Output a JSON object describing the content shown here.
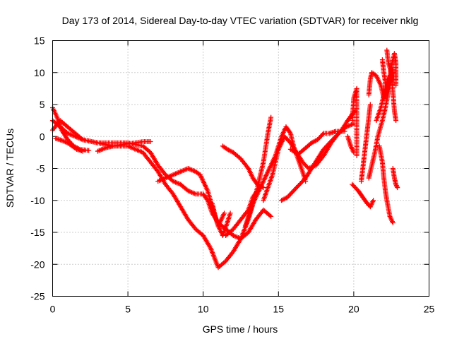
{
  "chart_data": {
    "type": "scatter",
    "title": "Day 173 of 2014, Sidereal Day-to-day VTEC variation (SDTVAR) for receiver nklg",
    "xlabel": "GPS time / hours",
    "ylabel": "SDTVAR / TECUs",
    "xlim": [
      0,
      25
    ],
    "ylim": [
      -25,
      15
    ],
    "xticks": [
      0,
      5,
      10,
      15,
      20,
      25
    ],
    "yticks": [
      -25,
      -20,
      -15,
      -10,
      -5,
      0,
      5,
      10,
      15
    ],
    "xtick_labels": [
      "0",
      "5",
      "10",
      "15",
      "20",
      "25"
    ],
    "ytick_labels": [
      "-25",
      "-20",
      "-15",
      "-10",
      "-5",
      "0",
      "5",
      "10",
      "15"
    ],
    "grid": true,
    "marker": "plus",
    "color": "#ff0000",
    "series": [
      {
        "name": "track-1",
        "points": [
          [
            0.0,
            1.0
          ],
          [
            0.5,
            2.5
          ],
          [
            1.0,
            1.5
          ],
          [
            1.5,
            0.5
          ],
          [
            2.0,
            -0.5
          ],
          [
            3.0,
            -1.0
          ],
          [
            4.0,
            -1.0
          ],
          [
            5.0,
            -1.0
          ],
          [
            6.0,
            -1.5
          ],
          [
            6.5,
            -2.5
          ],
          [
            7.0,
            -4.5
          ],
          [
            7.5,
            -6.0
          ],
          [
            8.0,
            -7.0
          ],
          [
            8.5,
            -7.5
          ],
          [
            9.0,
            -8.5
          ],
          [
            9.5,
            -9.0
          ],
          [
            10.0,
            -9.0
          ],
          [
            10.3,
            -10.0
          ],
          [
            10.6,
            -12.0
          ],
          [
            11.0,
            -13.5
          ],
          [
            11.5,
            -14.5
          ],
          [
            12.0,
            -15.5
          ],
          [
            12.5,
            -16.0
          ],
          [
            13.0,
            -15.0
          ],
          [
            13.5,
            -13.0
          ],
          [
            14.0,
            -11.5
          ],
          [
            14.5,
            -12.5
          ]
        ]
      },
      {
        "name": "track-2",
        "points": [
          [
            0.0,
            2.5
          ],
          [
            0.5,
            1.5
          ],
          [
            1.0,
            0.5
          ],
          [
            1.5,
            0.0
          ],
          [
            2.0,
            -0.5
          ],
          [
            3.0,
            -1.0
          ],
          [
            4.0,
            -1.5
          ],
          [
            5.0,
            -1.5
          ],
          [
            6.0,
            -2.5
          ],
          [
            6.5,
            -4.0
          ],
          [
            7.0,
            -5.5
          ],
          [
            7.5,
            -7.5
          ],
          [
            8.0,
            -9.0
          ],
          [
            8.5,
            -11.0
          ],
          [
            9.0,
            -13.0
          ],
          [
            9.5,
            -14.5
          ],
          [
            10.0,
            -15.5
          ],
          [
            10.5,
            -17.5
          ],
          [
            11.0,
            -20.5
          ],
          [
            11.5,
            -19.5
          ],
          [
            12.0,
            -18.0
          ],
          [
            12.5,
            -16.0
          ],
          [
            13.0,
            -13.0
          ],
          [
            13.5,
            -9.0
          ],
          [
            14.0,
            -4.0
          ],
          [
            14.3,
            0.5
          ],
          [
            14.5,
            3.0
          ]
        ]
      },
      {
        "name": "track-3",
        "points": [
          [
            0.0,
            4.5
          ],
          [
            0.3,
            3.0
          ],
          [
            0.6,
            1.0
          ],
          [
            1.0,
            -0.5
          ],
          [
            1.4,
            -1.5
          ],
          [
            1.8,
            -2.0
          ],
          [
            2.4,
            -2.2
          ]
        ]
      },
      {
        "name": "track-4",
        "points": [
          [
            0.2,
            -0.3
          ],
          [
            0.6,
            -0.6
          ],
          [
            1.0,
            -1.0
          ],
          [
            1.3,
            -1.5
          ],
          [
            1.6,
            -2.0
          ],
          [
            2.0,
            -2.3
          ]
        ]
      },
      {
        "name": "track-5",
        "points": [
          [
            3.0,
            -2.3
          ],
          [
            3.5,
            -1.8
          ],
          [
            4.0,
            -1.5
          ],
          [
            4.8,
            -1.2
          ],
          [
            5.5,
            -1.0
          ],
          [
            6.0,
            -0.8
          ],
          [
            6.5,
            -0.8
          ]
        ]
      },
      {
        "name": "track-6",
        "points": [
          [
            7.0,
            -7.0
          ],
          [
            8.0,
            -6.0
          ],
          [
            8.5,
            -5.5
          ],
          [
            9.0,
            -5.0
          ],
          [
            9.5,
            -5.5
          ],
          [
            9.8,
            -6.0
          ],
          [
            10.0,
            -7.0
          ],
          [
            10.3,
            -8.5
          ],
          [
            10.6,
            -11.0
          ],
          [
            11.0,
            -14.0
          ],
          [
            11.3,
            -15.5
          ],
          [
            11.6,
            -13.5
          ],
          [
            11.8,
            -12.0
          ]
        ]
      },
      {
        "name": "track-7",
        "points": [
          [
            10.6,
            -10.5
          ],
          [
            10.8,
            -12.5
          ],
          [
            11.0,
            -14.0
          ],
          [
            11.2,
            -13.0
          ],
          [
            11.4,
            -12.0
          ]
        ]
      },
      {
        "name": "track-8",
        "points": [
          [
            11.3,
            -1.5
          ],
          [
            11.6,
            -2.0
          ],
          [
            12.0,
            -2.5
          ],
          [
            12.5,
            -3.5
          ],
          [
            13.0,
            -5.0
          ],
          [
            13.3,
            -6.5
          ],
          [
            13.6,
            -7.5
          ],
          [
            14.0,
            -8.0
          ]
        ]
      },
      {
        "name": "track-9",
        "points": [
          [
            11.5,
            -15.5
          ],
          [
            12.0,
            -14.5
          ],
          [
            12.5,
            -13.0
          ],
          [
            13.0,
            -11.5
          ],
          [
            13.3,
            -9.5
          ],
          [
            13.6,
            -8.5
          ]
        ]
      },
      {
        "name": "track-10",
        "points": [
          [
            12.8,
            -14.0
          ],
          [
            13.3,
            -10.5
          ],
          [
            13.8,
            -8.0
          ],
          [
            14.3,
            -5.5
          ],
          [
            14.8,
            -3.0
          ],
          [
            15.2,
            0.0
          ],
          [
            15.5,
            1.5
          ],
          [
            15.8,
            0.5
          ],
          [
            16.0,
            -1.5
          ],
          [
            16.3,
            -3.5
          ],
          [
            16.6,
            -5.5
          ],
          [
            16.8,
            -7.0
          ]
        ]
      },
      {
        "name": "track-11",
        "points": [
          [
            14.0,
            -10.0
          ],
          [
            14.6,
            -6.0
          ],
          [
            15.0,
            -2.0
          ],
          [
            15.4,
            0.0
          ],
          [
            15.8,
            -1.0
          ],
          [
            16.2,
            -2.5
          ],
          [
            16.6,
            -4.0
          ],
          [
            17.0,
            -5.0
          ],
          [
            17.5,
            -4.5
          ],
          [
            18.0,
            -3.0
          ],
          [
            18.5,
            -1.0
          ],
          [
            19.0,
            0.5
          ],
          [
            19.5,
            1.5
          ],
          [
            20.0,
            2.0
          ]
        ]
      },
      {
        "name": "track-12",
        "points": [
          [
            15.2,
            -10.0
          ],
          [
            15.6,
            -9.5
          ],
          [
            16.0,
            -8.5
          ],
          [
            16.4,
            -7.5
          ],
          [
            16.8,
            -6.5
          ],
          [
            17.2,
            -5.0
          ],
          [
            17.6,
            -3.5
          ],
          [
            18.0,
            -2.0
          ],
          [
            18.4,
            -1.0
          ],
          [
            18.8,
            0.0
          ],
          [
            19.2,
            1.0
          ],
          [
            19.6,
            2.5
          ],
          [
            19.9,
            3.5
          ],
          [
            20.1,
            4.0
          ]
        ]
      },
      {
        "name": "track-13",
        "points": [
          [
            15.8,
            -2.0
          ],
          [
            16.3,
            -2.8
          ],
          [
            16.8,
            -1.8
          ],
          [
            17.2,
            -1.0
          ],
          [
            17.6,
            -0.5
          ],
          [
            18.0,
            0.5
          ],
          [
            18.4,
            0.5
          ],
          [
            18.8,
            0.8
          ],
          [
            19.4,
            0.8
          ]
        ]
      },
      {
        "name": "track-14",
        "points": [
          [
            19.6,
            0.0
          ],
          [
            19.8,
            -1.5
          ],
          [
            20.0,
            -2.5
          ]
        ]
      },
      {
        "name": "track-15",
        "points": [
          [
            19.9,
            2.5
          ],
          [
            20.0,
            6.0
          ],
          [
            20.2,
            7.5
          ],
          [
            20.2,
            -3.0
          ]
        ]
      },
      {
        "name": "track-16",
        "points": [
          [
            19.9,
            -7.5
          ],
          [
            20.1,
            -8.0
          ],
          [
            20.3,
            -8.5
          ],
          [
            20.6,
            -9.5
          ],
          [
            20.9,
            -10.5
          ],
          [
            21.1,
            -11.0
          ],
          [
            21.3,
            -10.0
          ]
        ]
      },
      {
        "name": "track-17",
        "points": [
          [
            21.0,
            -6.5
          ],
          [
            21.2,
            -4.5
          ],
          [
            21.4,
            -2.5
          ],
          [
            21.6,
            0.0
          ],
          [
            21.9,
            2.5
          ],
          [
            22.1,
            4.5
          ],
          [
            22.3,
            7.0
          ],
          [
            22.5,
            9.0
          ],
          [
            22.6,
            10.5
          ]
        ]
      },
      {
        "name": "track-18",
        "points": [
          [
            21.0,
            6.5
          ],
          [
            21.1,
            9.0
          ],
          [
            21.2,
            10.0
          ],
          [
            21.5,
            9.5
          ],
          [
            21.8,
            8.0
          ],
          [
            22.0,
            6.0
          ],
          [
            22.2,
            7.5
          ],
          [
            22.4,
            9.5
          ],
          [
            22.6,
            10.0
          ]
        ]
      },
      {
        "name": "track-19",
        "points": [
          [
            21.5,
            2.5
          ],
          [
            21.8,
            4.5
          ],
          [
            22.0,
            6.5
          ],
          [
            22.3,
            8.0
          ],
          [
            22.5,
            11.0
          ],
          [
            22.7,
            13.0
          ],
          [
            22.8,
            11.5
          ],
          [
            22.8,
            8.0
          ]
        ]
      },
      {
        "name": "track-20",
        "points": [
          [
            21.7,
            -1.5
          ],
          [
            21.9,
            -4.0
          ],
          [
            22.0,
            -6.5
          ],
          [
            22.1,
            -8.5
          ],
          [
            22.2,
            -10.0
          ],
          [
            22.4,
            -12.5
          ],
          [
            22.6,
            -13.5
          ]
        ]
      },
      {
        "name": "track-21",
        "points": [
          [
            22.2,
            13.5
          ],
          [
            22.3,
            11.5
          ],
          [
            22.5,
            10.0
          ],
          [
            22.6,
            7.0
          ],
          [
            22.7,
            4.0
          ],
          [
            22.8,
            2.5
          ]
        ]
      },
      {
        "name": "track-22",
        "points": [
          [
            22.6,
            -5.0
          ],
          [
            22.7,
            -6.5
          ],
          [
            22.8,
            -7.5
          ],
          [
            22.9,
            -8.0
          ]
        ]
      },
      {
        "name": "track-23",
        "points": [
          [
            21.9,
            12.0
          ],
          [
            22.0,
            10.0
          ],
          [
            22.1,
            8.5
          ],
          [
            22.1,
            7.0
          ]
        ]
      },
      {
        "name": "track-24",
        "points": [
          [
            20.5,
            -7.0
          ],
          [
            20.6,
            -5.0
          ],
          [
            20.7,
            -3.0
          ],
          [
            20.8,
            -1.0
          ],
          [
            20.9,
            1.0
          ],
          [
            21.0,
            3.0
          ],
          [
            21.1,
            5.0
          ]
        ]
      }
    ]
  }
}
